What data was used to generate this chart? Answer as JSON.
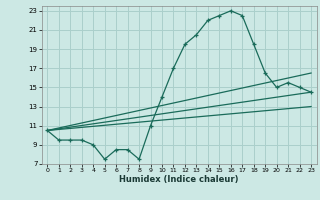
{
  "title": "",
  "xlabel": "Humidex (Indice chaleur)",
  "ylabel": "",
  "bg_color": "#cce8e4",
  "grid_color": "#aacfcb",
  "line_color": "#1a6b5a",
  "xlim": [
    -0.5,
    23.5
  ],
  "ylim": [
    7,
    23.5
  ],
  "yticks": [
    7,
    9,
    11,
    13,
    15,
    17,
    19,
    21,
    23
  ],
  "xticks": [
    0,
    1,
    2,
    3,
    4,
    5,
    6,
    7,
    8,
    9,
    10,
    11,
    12,
    13,
    14,
    15,
    16,
    17,
    18,
    19,
    20,
    21,
    22,
    23
  ],
  "series1_x": [
    0,
    1,
    2,
    3,
    4,
    5,
    6,
    7,
    8,
    9,
    10,
    11,
    12,
    13,
    14,
    15,
    16,
    17,
    18,
    19,
    20,
    21,
    22,
    23
  ],
  "series1_y": [
    10.5,
    9.5,
    9.5,
    9.5,
    9.0,
    7.5,
    8.5,
    8.5,
    7.5,
    11.0,
    14.0,
    17.0,
    19.5,
    20.5,
    22.0,
    22.5,
    23.0,
    22.5,
    19.5,
    16.5,
    15.0,
    15.5,
    15.0,
    14.5
  ],
  "series2_x": [
    0,
    23
  ],
  "series2_y": [
    10.5,
    16.5
  ],
  "series3_x": [
    0,
    23
  ],
  "series3_y": [
    10.5,
    14.5
  ],
  "series4_x": [
    0,
    23
  ],
  "series4_y": [
    10.5,
    13.0
  ]
}
